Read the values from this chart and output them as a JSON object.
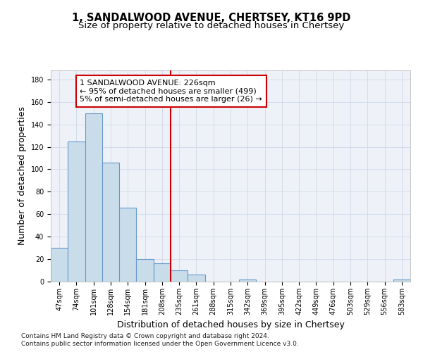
{
  "title": "1, SANDALWOOD AVENUE, CHERTSEY, KT16 9PD",
  "subtitle": "Size of property relative to detached houses in Chertsey",
  "xlabel": "Distribution of detached houses by size in Chertsey",
  "ylabel": "Number of detached properties",
  "bar_labels": [
    "47sqm",
    "74sqm",
    "101sqm",
    "128sqm",
    "154sqm",
    "181sqm",
    "208sqm",
    "235sqm",
    "261sqm",
    "288sqm",
    "315sqm",
    "342sqm",
    "369sqm",
    "395sqm",
    "422sqm",
    "449sqm",
    "476sqm",
    "503sqm",
    "529sqm",
    "556sqm",
    "583sqm"
  ],
  "bar_values": [
    30,
    125,
    150,
    106,
    66,
    20,
    16,
    10,
    6,
    0,
    0,
    2,
    0,
    0,
    0,
    0,
    0,
    0,
    0,
    0,
    2
  ],
  "bar_color": "#c9dcea",
  "bar_edge_color": "#6699cc",
  "vline_x": 6.5,
  "vline_color": "#cc0000",
  "annotation_text": "1 SANDALWOOD AVENUE: 226sqm\n← 95% of detached houses are smaller (499)\n5% of semi-detached houses are larger (26) →",
  "annotation_box_color": "#ffffff",
  "annotation_box_edge": "#cc0000",
  "ylim": [
    0,
    188
  ],
  "yticks": [
    0,
    20,
    40,
    60,
    80,
    100,
    120,
    140,
    160,
    180
  ],
  "grid_color": "#d0d8e8",
  "bg_color": "#eef2f8",
  "footer_line1": "Contains HM Land Registry data © Crown copyright and database right 2024.",
  "footer_line2": "Contains public sector information licensed under the Open Government Licence v3.0.",
  "title_fontsize": 10.5,
  "subtitle_fontsize": 9.5,
  "axis_label_fontsize": 9,
  "tick_fontsize": 7,
  "annotation_fontsize": 8,
  "footer_fontsize": 6.5
}
